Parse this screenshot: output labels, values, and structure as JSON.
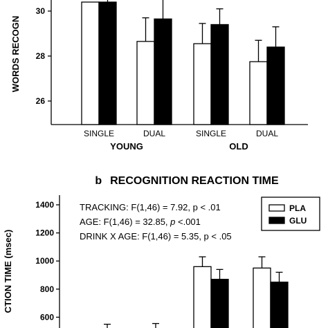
{
  "chart_data": [
    {
      "type": "bar",
      "panel_label": "",
      "title": "",
      "ylabel": "WORDS RECOGN",
      "ylim": [
        25.0,
        31.0
      ],
      "yticks": [
        26,
        28,
        30
      ],
      "categories": [
        "SINGLE",
        "DUAL",
        "SINGLE",
        "DUAL"
      ],
      "groups": [
        "YOUNG",
        "OLD"
      ],
      "series": [
        {
          "name": "PLA",
          "color": "#ffffff",
          "values": [
            30.4,
            28.65,
            28.55,
            27.75
          ],
          "errors": [
            null,
            1.05,
            0.9,
            0.95
          ]
        },
        {
          "name": "GLU",
          "color": "#000000",
          "values": [
            30.4,
            29.65,
            29.4,
            28.4
          ],
          "errors": [
            null,
            0.95,
            0.7,
            0.9
          ]
        }
      ],
      "legend": false,
      "annotations": []
    },
    {
      "type": "bar",
      "panel_label": "b",
      "title": "RECOGNITION REACTION TIME",
      "ylabel": "CTION TIME (msec)",
      "ylim": [
        500,
        1450
      ],
      "yticks": [
        600,
        800,
        1000,
        1200,
        1400
      ],
      "categories": [
        "SINGLE",
        "DUAL",
        "SINGLE",
        "DUAL"
      ],
      "series": [
        {
          "name": "PLA",
          "color": "#ffffff",
          "values": [
            null,
            null,
            960,
            950
          ],
          "errors": [
            null,
            null,
            70,
            80
          ]
        },
        {
          "name": "GLU",
          "color": "#000000",
          "values": [
            null,
            null,
            870,
            850
          ],
          "errors": [
            null,
            null,
            70,
            70
          ]
        }
      ],
      "partial_error_caps": [
        550,
        555
      ],
      "legend": {
        "placement": "top-right",
        "entries": [
          "PLA",
          "GLU"
        ]
      },
      "annotations": [
        {
          "prefix": "TRACKING: F(1,46) = 7.92, p < .01"
        },
        {
          "prefix": "AGE: F(1,46) = 32.85, ",
          "italic": "p",
          "suffix": " <.001"
        },
        {
          "prefix": "DRINK X AGE: F(1,46) = 5.35, p < .05"
        }
      ]
    }
  ]
}
